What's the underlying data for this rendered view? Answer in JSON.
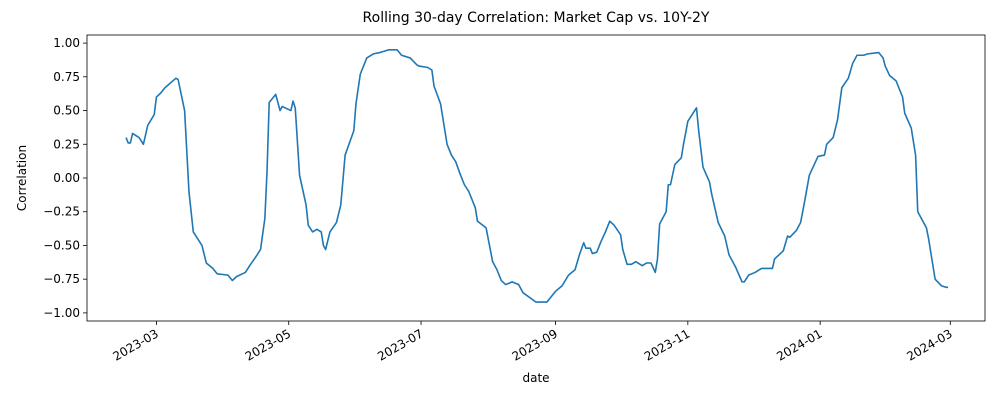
{
  "chart_data": {
    "type": "line",
    "title": "Rolling 30-day Correlation: Market Cap vs. 10Y-2Y",
    "xlabel": "date",
    "ylabel": "Correlation",
    "color": "#1f77b4",
    "x": [
      "2023-02-15",
      "2023-02-16",
      "2023-02-17",
      "2023-02-18",
      "2023-02-21",
      "2023-02-23",
      "2023-02-25",
      "2023-02-28",
      "2023-03-01",
      "2023-03-03",
      "2023-03-05",
      "2023-03-10",
      "2023-03-11",
      "2023-03-14",
      "2023-03-15",
      "2023-03-16",
      "2023-03-18",
      "2023-03-22",
      "2023-03-24",
      "2023-03-27",
      "2023-03-29",
      "2023-04-03",
      "2023-04-05",
      "2023-04-07",
      "2023-04-11",
      "2023-04-13",
      "2023-04-16",
      "2023-04-18",
      "2023-04-20",
      "2023-04-21",
      "2023-04-22",
      "2023-04-25",
      "2023-04-27",
      "2023-04-28",
      "2023-05-02",
      "2023-05-03",
      "2023-05-04",
      "2023-05-06",
      "2023-05-09",
      "2023-05-10",
      "2023-05-12",
      "2023-05-14",
      "2023-05-16",
      "2023-05-17",
      "2023-05-18",
      "2023-05-20",
      "2023-05-23",
      "2023-05-25",
      "2023-05-27",
      "2023-05-31",
      "2023-06-01",
      "2023-06-03",
      "2023-06-06",
      "2023-06-09",
      "2023-06-12",
      "2023-06-16",
      "2023-06-20",
      "2023-06-22",
      "2023-06-26",
      "2023-06-29",
      "2023-06-30",
      "2023-07-04",
      "2023-07-06",
      "2023-07-07",
      "2023-07-10",
      "2023-07-12",
      "2023-07-13",
      "2023-07-15",
      "2023-07-17",
      "2023-07-19",
      "2023-07-21",
      "2023-07-23",
      "2023-07-26",
      "2023-07-27",
      "2023-07-31",
      "2023-08-03",
      "2023-08-05",
      "2023-08-07",
      "2023-08-09",
      "2023-08-12",
      "2023-08-15",
      "2023-08-17",
      "2023-08-23",
      "2023-08-28",
      "2023-08-30",
      "2023-09-01",
      "2023-09-04",
      "2023-09-07",
      "2023-09-10",
      "2023-09-12",
      "2023-09-14",
      "2023-09-15",
      "2023-09-17",
      "2023-09-18",
      "2023-09-20",
      "2023-09-22",
      "2023-09-24",
      "2023-09-26",
      "2023-09-28",
      "2023-10-01",
      "2023-10-02",
      "2023-10-04",
      "2023-10-06",
      "2023-10-08",
      "2023-10-11",
      "2023-10-13",
      "2023-10-15",
      "2023-10-17",
      "2023-10-18",
      "2023-10-19",
      "2023-10-22",
      "2023-10-23",
      "2023-10-24",
      "2023-10-26",
      "2023-10-29",
      "2023-10-30",
      "2023-11-01",
      "2023-11-05",
      "2023-11-06",
      "2023-11-08",
      "2023-11-11",
      "2023-11-12",
      "2023-11-15",
      "2023-11-18",
      "2023-11-20",
      "2023-11-23",
      "2023-11-26",
      "2023-11-27",
      "2023-11-29",
      "2023-12-02",
      "2023-12-04",
      "2023-12-05",
      "2023-12-10",
      "2023-12-11",
      "2023-12-15",
      "2023-12-17",
      "2023-12-18",
      "2023-12-21",
      "2023-12-23",
      "2023-12-25",
      "2023-12-27",
      "2023-12-31",
      "2024-01-03",
      "2024-01-04",
      "2024-01-07",
      "2024-01-09",
      "2024-01-11",
      "2024-01-14",
      "2024-01-16",
      "2024-01-18",
      "2024-01-21",
      "2024-01-23",
      "2024-01-28",
      "2024-01-30",
      "2024-01-31",
      "2024-02-02",
      "2024-02-05",
      "2024-02-08",
      "2024-02-09",
      "2024-02-12",
      "2024-02-14",
      "2024-02-15",
      "2024-02-19",
      "2024-02-20",
      "2024-02-23",
      "2024-02-26",
      "2024-02-28",
      "2024-02-29"
    ],
    "values": [
      0.3,
      0.26,
      0.26,
      0.33,
      0.3,
      0.25,
      0.39,
      0.47,
      0.6,
      0.63,
      0.67,
      0.74,
      0.73,
      0.5,
      0.2,
      -0.1,
      -0.4,
      -0.5,
      -0.63,
      -0.67,
      -0.71,
      -0.72,
      -0.76,
      -0.73,
      -0.7,
      -0.65,
      -0.58,
      -0.53,
      -0.3,
      0.05,
      0.56,
      0.62,
      0.5,
      0.53,
      0.5,
      0.57,
      0.52,
      0.02,
      -0.2,
      -0.35,
      -0.4,
      -0.38,
      -0.4,
      -0.5,
      -0.53,
      -0.4,
      -0.33,
      -0.2,
      0.17,
      0.35,
      0.55,
      0.77,
      0.89,
      0.92,
      0.93,
      0.95,
      0.95,
      0.91,
      0.89,
      0.84,
      0.83,
      0.82,
      0.8,
      0.68,
      0.55,
      0.35,
      0.25,
      0.17,
      0.12,
      0.03,
      -0.05,
      -0.1,
      -0.22,
      -0.32,
      -0.37,
      -0.62,
      -0.68,
      -0.76,
      -0.79,
      -0.77,
      -0.79,
      -0.85,
      -0.92,
      -0.92,
      -0.88,
      -0.84,
      -0.8,
      -0.72,
      -0.68,
      -0.57,
      -0.48,
      -0.52,
      -0.52,
      -0.56,
      -0.55,
      -0.47,
      -0.4,
      -0.32,
      -0.35,
      -0.42,
      -0.53,
      -0.64,
      -0.64,
      -0.62,
      -0.65,
      -0.63,
      -0.63,
      -0.7,
      -0.6,
      -0.34,
      -0.25,
      -0.05,
      -0.05,
      0.1,
      0.15,
      0.25,
      0.42,
      0.52,
      0.35,
      0.08,
      -0.03,
      -0.12,
      -0.33,
      -0.43,
      -0.57,
      -0.66,
      -0.77,
      -0.77,
      -0.72,
      -0.7,
      -0.68,
      -0.67,
      -0.67,
      -0.6,
      -0.54,
      -0.43,
      -0.44,
      -0.39,
      -0.33,
      -0.16,
      0.02,
      0.16,
      0.17,
      0.25,
      0.3,
      0.43,
      0.67,
      0.74,
      0.85,
      0.91,
      0.91,
      0.92,
      0.93,
      0.89,
      0.83,
      0.76,
      0.72,
      0.6,
      0.48,
      0.37,
      0.17,
      -0.25,
      -0.37,
      -0.45,
      -0.75,
      -0.8,
      -0.81,
      -0.81
    ],
    "xlim": [
      "2023-01-28",
      "2024-03-17"
    ],
    "xticks": [
      "2023-03",
      "2023-05",
      "2023-07",
      "2023-09",
      "2023-11",
      "2024-01",
      "2024-03"
    ],
    "ylim": [
      -1.06,
      1.06
    ],
    "yticks": [
      {
        "value": -1,
        "label": "−1.00"
      },
      {
        "value": -0.75,
        "label": "−0.75"
      },
      {
        "value": -0.5,
        "label": "−0.50"
      },
      {
        "value": -0.25,
        "label": "−0.25"
      },
      {
        "value": 0,
        "label": "0.00"
      },
      {
        "value": 0.25,
        "label": "0.25"
      },
      {
        "value": 0.5,
        "label": "0.50"
      },
      {
        "value": 0.75,
        "label": "0.75"
      },
      {
        "value": 1,
        "label": "1.00"
      }
    ],
    "grid": false
  }
}
